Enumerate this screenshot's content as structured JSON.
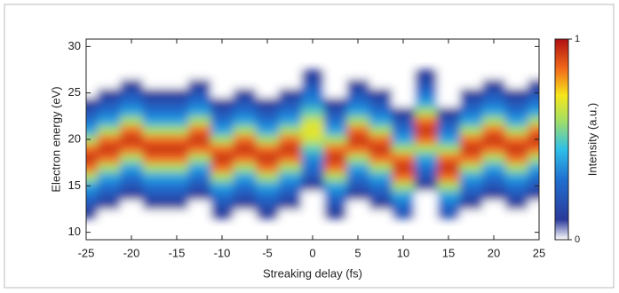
{
  "chart_data": {
    "type": "heatmap",
    "xlabel": "Streaking delay (fs)",
    "ylabel": "Electron energy (eV)",
    "colorbar_label": "Intensity (a.u.)",
    "colormap": "jet",
    "x": [
      -25,
      -22.5,
      -20,
      -17.5,
      -15,
      -12.5,
      -10,
      -7.5,
      -5,
      -2.5,
      0,
      2.5,
      5,
      7.5,
      10,
      12.5,
      15,
      17.5,
      20,
      22.5,
      25
    ],
    "y": [
      12,
      13,
      14,
      15,
      16,
      17,
      18,
      19,
      20,
      21,
      22,
      23,
      24,
      25,
      26,
      27
    ],
    "z": [
      [
        0.1,
        0,
        0,
        0,
        0,
        0,
        0.1,
        0,
        0.1,
        0,
        0,
        0.1,
        0,
        0,
        0.2,
        0,
        0.2,
        0,
        0,
        0,
        0
      ],
      [
        0.2,
        0.1,
        0,
        0.1,
        0.1,
        0,
        0.2,
        0.1,
        0.2,
        0.1,
        0,
        0.2,
        0,
        0.1,
        0.3,
        0,
        0.3,
        0.1,
        0,
        0.1,
        0
      ],
      [
        0.3,
        0.2,
        0.1,
        0.2,
        0.2,
        0.1,
        0.3,
        0.2,
        0.3,
        0.2,
        0,
        0.3,
        0.1,
        0.2,
        0.4,
        0,
        0.4,
        0.2,
        0.1,
        0.2,
        0.1
      ],
      [
        0.4,
        0.3,
        0.2,
        0.3,
        0.3,
        0.2,
        0.4,
        0.3,
        0.4,
        0.3,
        0.1,
        0.4,
        0.2,
        0.3,
        0.6,
        0.1,
        0.6,
        0.3,
        0.2,
        0.3,
        0.2
      ],
      [
        0.6,
        0.4,
        0.3,
        0.4,
        0.4,
        0.3,
        0.6,
        0.4,
        0.6,
        0.4,
        0.2,
        0.6,
        0.3,
        0.4,
        0.85,
        0.2,
        0.85,
        0.4,
        0.3,
        0.4,
        0.3
      ],
      [
        0.85,
        0.6,
        0.4,
        0.6,
        0.6,
        0.4,
        0.85,
        0.6,
        0.85,
        0.6,
        0.3,
        0.85,
        0.4,
        0.6,
        0.95,
        0.3,
        0.95,
        0.6,
        0.4,
        0.6,
        0.4
      ],
      [
        0.95,
        0.85,
        0.6,
        0.85,
        0.85,
        0.6,
        0.95,
        0.85,
        0.95,
        0.85,
        0.35,
        0.95,
        0.6,
        0.85,
        0.85,
        0.4,
        0.85,
        0.85,
        0.6,
        0.85,
        0.6
      ],
      [
        0.85,
        0.95,
        0.85,
        0.95,
        0.95,
        0.85,
        0.85,
        0.95,
        0.85,
        0.95,
        0.5,
        0.85,
        0.85,
        0.95,
        0.6,
        0.6,
        0.6,
        0.95,
        0.85,
        0.95,
        0.85
      ],
      [
        0.6,
        0.85,
        0.95,
        0.85,
        0.85,
        0.95,
        0.6,
        0.85,
        0.6,
        0.85,
        0.65,
        0.6,
        0.95,
        0.85,
        0.4,
        0.85,
        0.4,
        0.85,
        0.95,
        0.85,
        0.95
      ],
      [
        0.4,
        0.6,
        0.85,
        0.6,
        0.6,
        0.85,
        0.4,
        0.6,
        0.4,
        0.6,
        0.7,
        0.4,
        0.85,
        0.6,
        0.3,
        0.95,
        0.3,
        0.6,
        0.85,
        0.6,
        0.85
      ],
      [
        0.3,
        0.4,
        0.6,
        0.4,
        0.4,
        0.6,
        0.3,
        0.4,
        0.3,
        0.4,
        0.65,
        0.3,
        0.6,
        0.4,
        0.2,
        0.85,
        0.2,
        0.4,
        0.6,
        0.4,
        0.6
      ],
      [
        0.2,
        0.3,
        0.4,
        0.3,
        0.3,
        0.4,
        0.2,
        0.3,
        0.2,
        0.3,
        0.5,
        0.2,
        0.4,
        0.3,
        0.1,
        0.6,
        0.1,
        0.3,
        0.4,
        0.3,
        0.4
      ],
      [
        0.1,
        0.2,
        0.3,
        0.2,
        0.2,
        0.3,
        0.1,
        0.2,
        0.1,
        0.2,
        0.35,
        0.1,
        0.3,
        0.2,
        0,
        0.4,
        0,
        0.2,
        0.3,
        0.2,
        0.3
      ],
      [
        0,
        0.1,
        0.2,
        0.1,
        0.1,
        0.2,
        0,
        0.1,
        0,
        0.1,
        0.3,
        0,
        0.2,
        0.1,
        0,
        0.3,
        0,
        0.1,
        0.2,
        0.1,
        0.2
      ],
      [
        0,
        0,
        0.1,
        0,
        0,
        0.1,
        0,
        0,
        0,
        0,
        0.2,
        0,
        0.1,
        0,
        0,
        0.2,
        0,
        0,
        0.1,
        0,
        0.1
      ],
      [
        0,
        0,
        0,
        0,
        0,
        0,
        0,
        0,
        0,
        0,
        0.1,
        0,
        0,
        0,
        0,
        0.1,
        0,
        0,
        0,
        0,
        0
      ]
    ],
    "xlim": [
      -25,
      25
    ],
    "ylim": [
      9.2,
      30.8
    ],
    "xticks": [
      -25,
      -20,
      -15,
      -10,
      -5,
      0,
      5,
      10,
      15,
      20,
      25
    ],
    "yticks": [
      10,
      15,
      20,
      25,
      30
    ],
    "clim": [
      0,
      1
    ],
    "cticks": [
      0,
      1
    ]
  }
}
